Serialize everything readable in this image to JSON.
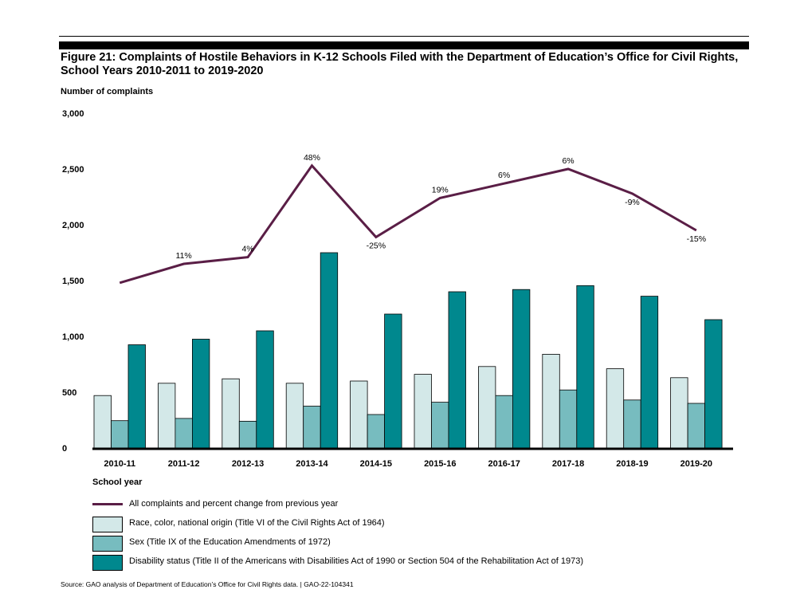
{
  "figure": {
    "title_line1": "Figure 21: Complaints of Hostile Behaviors in K-12 Schools Filed with the Department of Education’s Office for Civil Rights,",
    "title_line2": "School Years 2010-2011 to 2019-2020",
    "source": "Source: GAO analysis of Department of Education’s Office for Civil Rights data.  |  GAO-22-104341"
  },
  "colors": {
    "race": "#d3e8e8",
    "sex": "#77bcbf",
    "disability": "#00888e",
    "total_line": "#5a1e46",
    "axis": "#000000"
  },
  "chart_data": {
    "type": "bar",
    "title": "Complaints of Hostile Behaviors in K-12 Schools Filed with the Department of Education’s Office for Civil Rights, School Years 2010-2011 to 2019-2020",
    "ylabel": "Number of complaints",
    "xlabel": "School year",
    "ylim": [
      0,
      3000
    ],
    "yticks": [
      0,
      500,
      1000,
      1500,
      2000,
      2500,
      3000
    ],
    "ytick_labels": [
      "0",
      "500",
      "1,000",
      "1,500",
      "2,000",
      "2,500",
      "3,000"
    ],
    "categories": [
      "2010-11",
      "2011-12",
      "2012-13",
      "2013-14",
      "2014-15",
      "2015-16",
      "2016-17",
      "2017-18",
      "2018-19",
      "2019-20"
    ],
    "series": [
      {
        "name": "Race, color, national origin (Title VI of the Civil Rights Act of 1964)",
        "key": "race",
        "values": [
          470,
          580,
          620,
          580,
          600,
          660,
          730,
          840,
          710,
          630
        ]
      },
      {
        "name": "Sex (Title IX of the Education Amendments of 1972)",
        "key": "sex",
        "values": [
          245,
          265,
          240,
          375,
          300,
          410,
          470,
          520,
          430,
          400
        ]
      },
      {
        "name": "Disability status (Title II of the Americans with Disabilities Act of 1990 or Section 504 of the Rehabilitation Act of 1973)",
        "key": "disability",
        "values": [
          925,
          975,
          1050,
          1750,
          1200,
          1400,
          1420,
          1455,
          1360,
          1150
        ]
      }
    ],
    "line_series": {
      "name": "All complaints and percent change from previous year",
      "key": "total",
      "values": [
        1480,
        1650,
        1710,
        2530,
        1890,
        2240,
        2370,
        2500,
        2280,
        1950
      ],
      "labels": [
        "",
        "11%",
        "4%",
        "48%",
        "-25%",
        "19%",
        "6%",
        "6%",
        "-9%",
        "-15%"
      ]
    },
    "legend": [
      "All complaints and percent change from previous year",
      "Race, color, national origin (Title VI of the Civil Rights Act of 1964)",
      "Sex (Title IX of the Education Amendments of 1972)",
      "Disability status (Title II of the Americans with Disabilities Act of 1990 or Section 504 of the Rehabilitation Act of 1973)"
    ]
  }
}
